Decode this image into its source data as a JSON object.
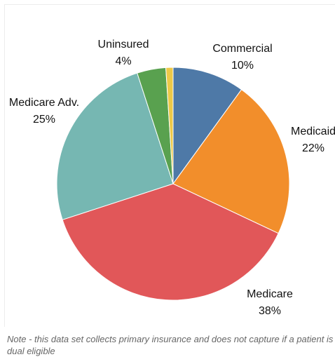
{
  "chart_data": {
    "type": "pie",
    "title": "",
    "start_angle_deg": 0,
    "direction": "clockwise",
    "slices": [
      {
        "name": "Commercial",
        "value": 10,
        "value_label": "10%",
        "color": "#4e79a7"
      },
      {
        "name": "Medicaid",
        "value": 22,
        "value_label": "22%",
        "color": "#f28e2b"
      },
      {
        "name": "Medicare",
        "value": 38,
        "value_label": "38%",
        "color": "#e15759"
      },
      {
        "name": "Medicare Adv.",
        "value": 25,
        "value_label": "25%",
        "color": "#76b7b2"
      },
      {
        "name": "Uninsured",
        "value": 4,
        "value_label": "4%",
        "color": "#59a14f"
      },
      {
        "name": "",
        "value": 1,
        "value_label": "",
        "color": "#edc948"
      }
    ]
  },
  "footnote": "Note - this data set collects primary insurance and does not capture if a patient is dual eligible"
}
